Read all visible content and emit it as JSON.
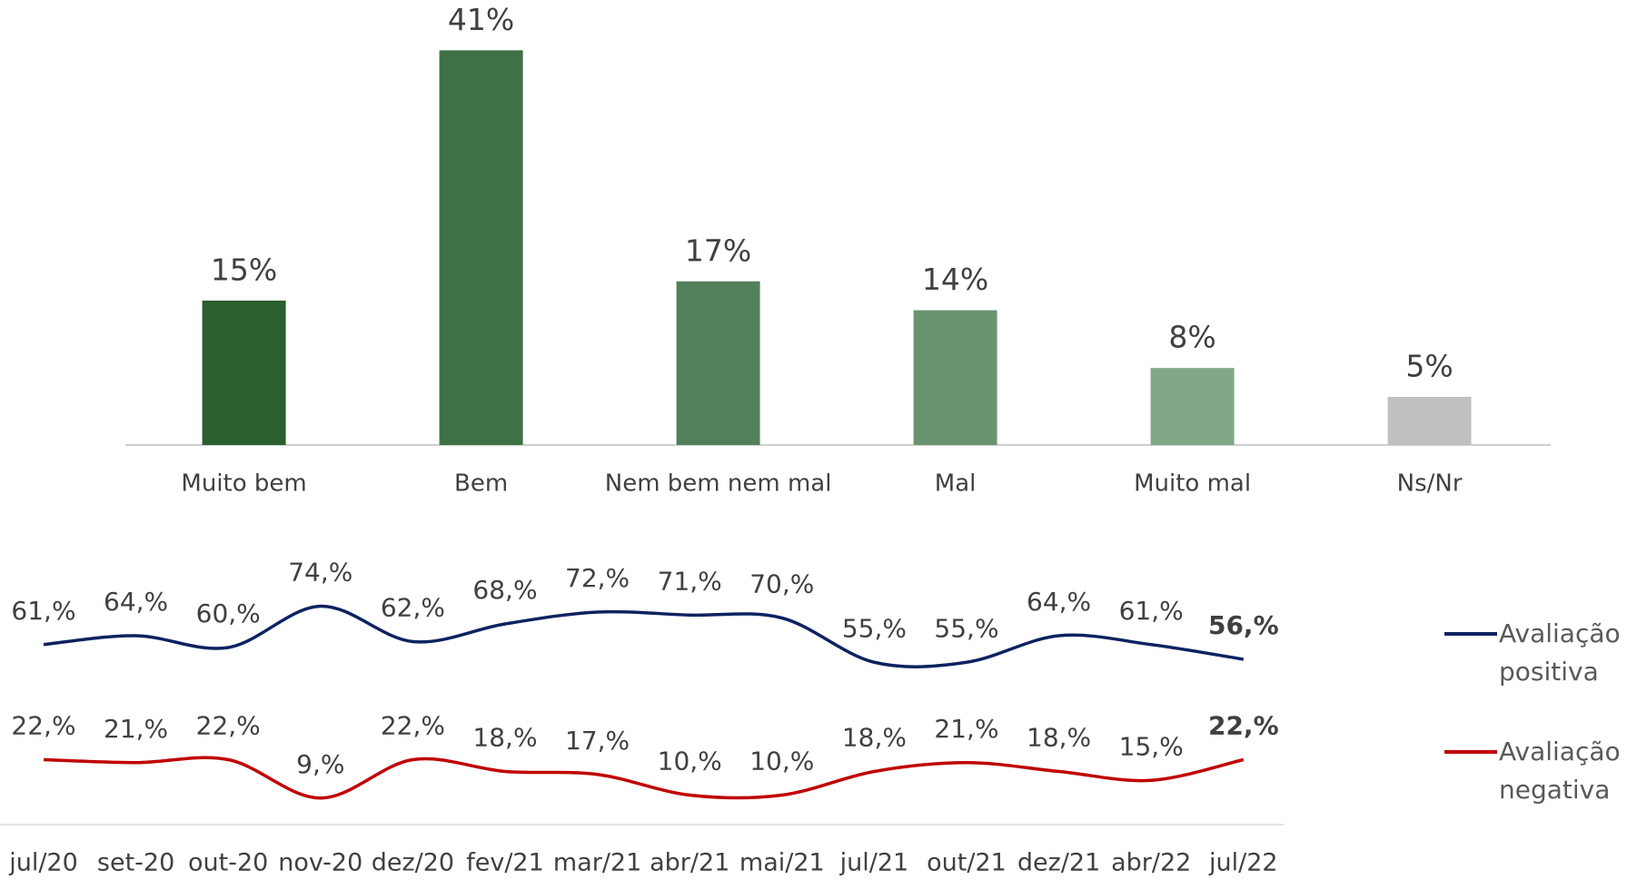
{
  "chart_data": [
    {
      "type": "bar",
      "categories": [
        "Muito bem",
        "Bem",
        "Nem bem nem mal",
        "Mal",
        "Muito mal",
        "Ns/Nr"
      ],
      "values": [
        15,
        41,
        17,
        14,
        8,
        5
      ],
      "value_labels": [
        "15%",
        "41%",
        "17%",
        "14%",
        "8%",
        "5%"
      ],
      "colors": [
        "#2a5f2e",
        "#3f7146",
        "#52805a",
        "#6a9470",
        "#81a787",
        "#c0c0c0"
      ]
    },
    {
      "type": "line",
      "categories": [
        "jul/20",
        "set-20",
        "out-20",
        "nov-20",
        "dez/20",
        "fev/21",
        "mar/21",
        "abr/21",
        "mai/21",
        "jul/21",
        "out/21",
        "dez/21",
        "abr/22",
        "jul/22"
      ],
      "series": [
        {
          "name": "Avaliação positiva",
          "color": "#0d2260",
          "values": [
            61,
            64,
            60,
            74,
            62,
            68,
            72,
            71,
            70,
            55,
            55,
            64,
            61,
            56
          ],
          "value_labels": [
            "61,%",
            "64,%",
            "60,%",
            "74,%",
            "62,%",
            "68,%",
            "72,%",
            "71,%",
            "70,%",
            "55,%",
            "55,%",
            "64,%",
            "61,%",
            "56,%"
          ]
        },
        {
          "name": "Avaliação negativa",
          "color": "#c00000",
          "values": [
            22,
            21,
            22,
            9,
            22,
            18,
            17,
            10,
            10,
            18,
            21,
            18,
            15,
            22
          ],
          "value_labels": [
            "22,%",
            "21,%",
            "22,%",
            "9,%",
            "22,%",
            "18,%",
            "17,%",
            "10,%",
            "10,%",
            "18,%",
            "21,%",
            "18,%",
            "15,%",
            "22,%"
          ]
        }
      ]
    }
  ]
}
